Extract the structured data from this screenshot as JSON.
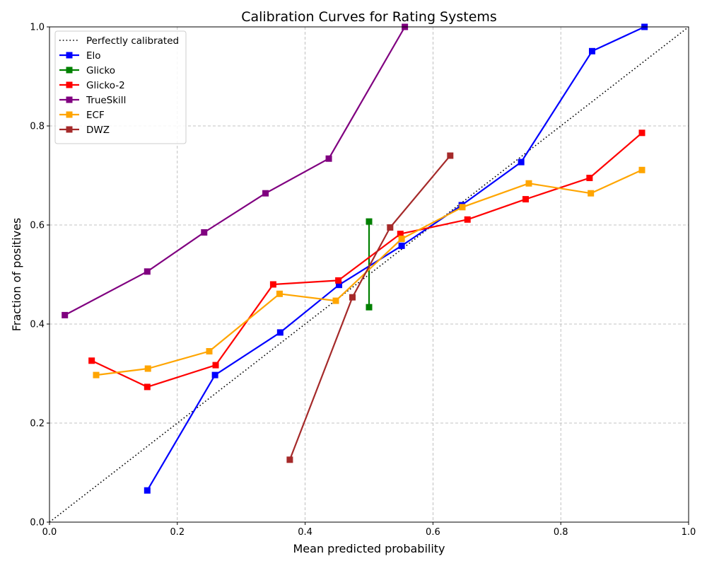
{
  "chart_data": {
    "type": "line",
    "title": "Calibration Curves for Rating Systems",
    "xlabel": "Mean predicted probability",
    "ylabel": "Fraction of positives",
    "xlim": [
      0.0,
      1.0
    ],
    "ylim": [
      0.0,
      1.0
    ],
    "xticks": [
      "0.0",
      "0.2",
      "0.4",
      "0.6",
      "0.8",
      "1.0"
    ],
    "yticks": [
      "0.0",
      "0.2",
      "0.4",
      "0.6",
      "0.8",
      "1.0"
    ],
    "grid": true,
    "legend_position": "upper-left",
    "reference": {
      "name": "Perfectly calibrated",
      "x": [
        0.0,
        1.0
      ],
      "y": [
        0.0,
        1.0
      ],
      "color": "#000000",
      "style": "dotted"
    },
    "series": [
      {
        "name": "Elo",
        "color": "#0000ff",
        "x": [
          0.153,
          0.259,
          0.361,
          0.453,
          0.551,
          0.645,
          0.738,
          0.849,
          0.931
        ],
        "y": [
          0.064,
          0.297,
          0.383,
          0.479,
          0.558,
          0.64,
          0.727,
          0.951,
          1.0
        ]
      },
      {
        "name": "Glicko",
        "color": "#008000",
        "x": [
          0.5,
          0.5
        ],
        "y": [
          0.434,
          0.607
        ]
      },
      {
        "name": "Glicko-2",
        "color": "#ff0000",
        "x": [
          0.066,
          0.153,
          0.26,
          0.35,
          0.452,
          0.549,
          0.654,
          0.745,
          0.845,
          0.927
        ],
        "y": [
          0.326,
          0.273,
          0.317,
          0.48,
          0.488,
          0.582,
          0.611,
          0.652,
          0.695,
          0.786
        ]
      },
      {
        "name": "TrueSkill",
        "color": "#800080",
        "x": [
          0.024,
          0.153,
          0.242,
          0.338,
          0.437,
          0.556
        ],
        "y": [
          0.418,
          0.506,
          0.585,
          0.664,
          0.734,
          1.0
        ]
      },
      {
        "name": "ECF",
        "color": "#ffa500",
        "x": [
          0.073,
          0.154,
          0.25,
          0.36,
          0.448,
          0.551,
          0.646,
          0.75,
          0.847,
          0.927
        ],
        "y": [
          0.297,
          0.31,
          0.345,
          0.461,
          0.447,
          0.572,
          0.636,
          0.684,
          0.664,
          0.711
        ]
      },
      {
        "name": "DWZ",
        "color": "#a52a2a",
        "x": [
          0.376,
          0.474,
          0.533,
          0.627
        ],
        "y": [
          0.126,
          0.454,
          0.595,
          0.74
        ]
      }
    ]
  }
}
